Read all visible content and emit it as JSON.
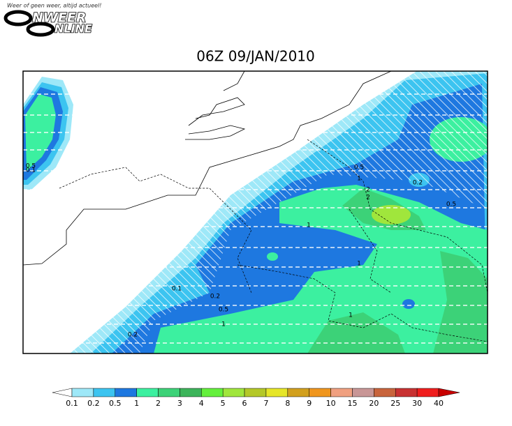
{
  "logo": {
    "tagline": "Weer of geen weer, altijd actueel!",
    "line1": "NWEER",
    "line2": "NLINE"
  },
  "title": "06Z 09/JAN/2010",
  "contour_labels": [
    "0.5",
    "1",
    "2",
    "0.2",
    "0.5",
    "1",
    "0.2",
    "0.5",
    "1",
    "0.1",
    "1",
    "1",
    "0.5",
    "0.1",
    "0.2",
    "2"
  ],
  "colorbar": {
    "labels": [
      0.1,
      0.2,
      0.5,
      1,
      2,
      3,
      4,
      5,
      6,
      7,
      8,
      9,
      10,
      15,
      20,
      25,
      30,
      40
    ],
    "colors": [
      "#9ee8f8",
      "#3cc4f0",
      "#1e78e0",
      "#3cf0a0",
      "#3cd278",
      "#3cb45a",
      "#64f03c",
      "#a0e63c",
      "#b4c828",
      "#e6e628",
      "#d2a01e",
      "#f0961e",
      "#f0a080",
      "#c89696",
      "#c8643c",
      "#c83232",
      "#f01e1e"
    ],
    "under_color": "#ffffff",
    "over_color": "#c80000"
  }
}
